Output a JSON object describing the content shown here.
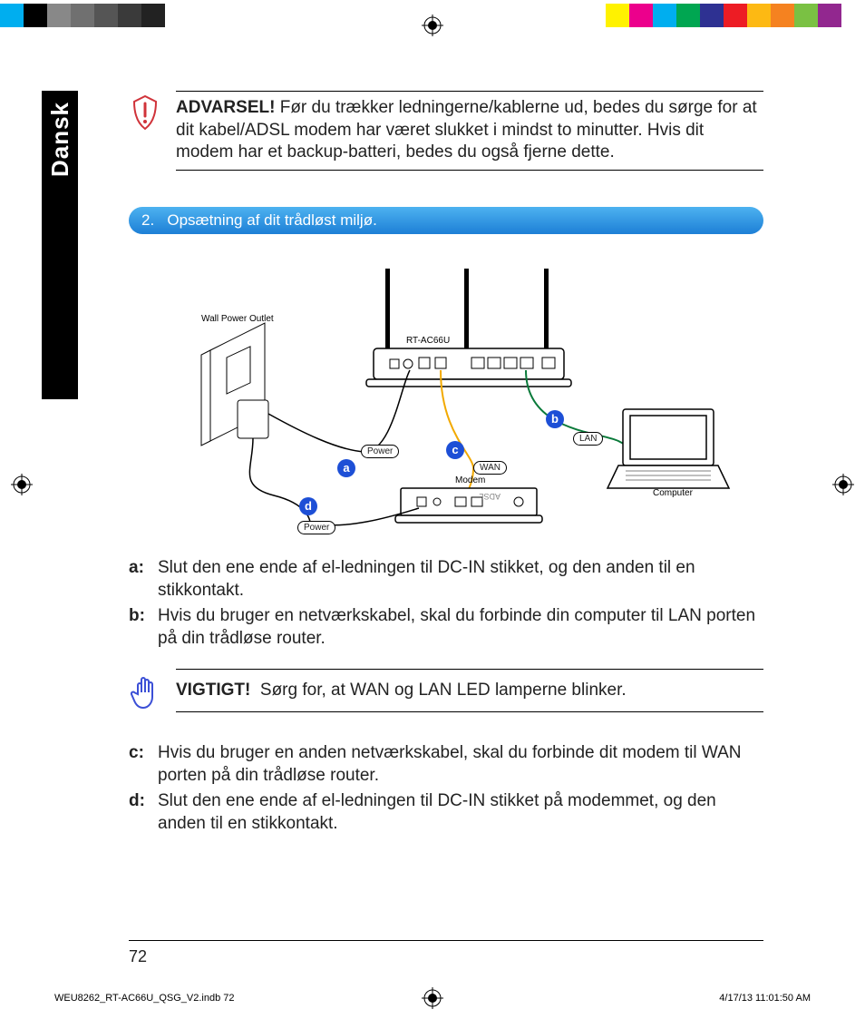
{
  "colorbar": {
    "left": [
      "#00aeef",
      "#000000",
      "#888888",
      "#707070",
      "#555555",
      "#3a3a3a",
      "#222222",
      "#ffffff"
    ],
    "right": [
      "#fff200",
      "#ec008c",
      "#00aeef",
      "#00a651",
      "#2e3192",
      "#ed1c24",
      "#fdb913",
      "#f58220",
      "#7ac143",
      "#92278f",
      "#ffffff"
    ],
    "swatch_width": 26
  },
  "side_tab": "Dansk",
  "warning": {
    "bold": "ADVARSEL!",
    "text": "Før du trækker ledningerne/kablerne ud, bedes du sørge for at dit kabel/ADSL modem har været slukket i mindst to minutter. Hvis dit modem har et backup-batteri, bedes du også fjerne dette.",
    "icon_color": "#d0333a"
  },
  "pill": {
    "number": "2.",
    "title": "Opsætning af dit trådløst miljø."
  },
  "diagram": {
    "wall_outlet": "Wall Power Outlet",
    "router_name": "RT-AC66U",
    "modem": "Modem",
    "adsl": "ADSL",
    "computer": "Computer",
    "power": "Power",
    "wan": "WAN",
    "lan": "LAN",
    "circles": {
      "a": "a",
      "b": "b",
      "c": "c",
      "d": "d"
    },
    "cable_colors": {
      "power": "#000000",
      "wan": "#f2a900",
      "lan": "#0a7a3a"
    }
  },
  "steps": {
    "a": {
      "key": "a:",
      "text": "Slut den ene ende af el-ledningen til DC-IN stikket, og den anden til en stikkontakt."
    },
    "b": {
      "key": "b:",
      "text": "Hvis du bruger en netværkskabel, skal du forbinde din computer til LAN porten på din trådløse router."
    },
    "c": {
      "key": "c:",
      "text": "Hvis du bruger en anden netværkskabel, skal du forbinde dit modem til WAN porten på din trådløse router."
    },
    "d": {
      "key": "d:",
      "text": "Slut den ene ende af el-ledningen til DC-IN stikket på modemmet, og den anden til en stikkontakt."
    }
  },
  "important": {
    "bold": "VIGTIGT!",
    "text": "Sørg for, at WAN og LAN LED lamperne blinker.",
    "icon_color": "#3b4fd6"
  },
  "page_number": "72",
  "meta": {
    "left": "WEU8262_RT-AC66U_QSG_V2.indb   72",
    "right": "4/17/13   11:01:50 AM"
  }
}
